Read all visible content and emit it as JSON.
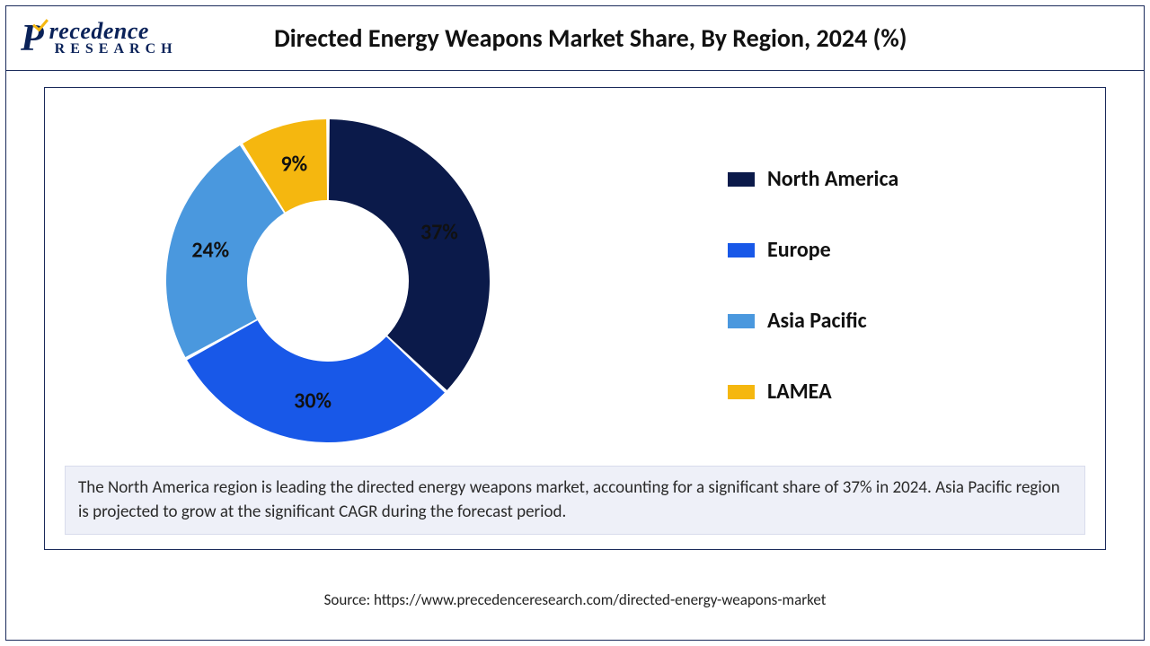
{
  "logo": {
    "brand_top": "recedence",
    "brand_sub": "RESEARCH"
  },
  "chart": {
    "type": "donut",
    "title": "Directed Energy Weapons Market Share, By Region, 2024 (%)",
    "title_fontsize": 28,
    "title_color": "#111111",
    "background_color": "#ffffff",
    "frame_border_color": "#1a2a5a",
    "donut_outer_radius": 180,
    "donut_inner_radius": 90,
    "gap_degrees": 1.2,
    "label_fontsize": 24,
    "label_fontweight": 700,
    "series": [
      {
        "name": "North America",
        "value": 37,
        "label": "37%",
        "color": "#0b1a4a"
      },
      {
        "name": "Europe",
        "value": 30,
        "label": "30%",
        "color": "#1858e8"
      },
      {
        "name": "Asia Pacific",
        "value": 24,
        "label": "24%",
        "color": "#4a98de"
      },
      {
        "name": "LAMEA",
        "value": 9,
        "label": "9%",
        "color": "#f5b70f"
      }
    ],
    "legend": {
      "position": "right",
      "swatch_width": 30,
      "swatch_height": 16,
      "label_fontsize": 24,
      "label_fontweight": 700,
      "label_color": "#111111",
      "row_gap": 50
    },
    "caption": {
      "text": "The North America region is leading the directed energy weapons market, accounting for a significant share of 37% in 2024. Asia Pacific region is projected to grow at the significant CAGR during the forecast period.",
      "background_color": "#eef0f8",
      "border_color": "#d8dcec",
      "fontsize": 19,
      "font_color": "#2a2a2a"
    }
  },
  "source": {
    "text": "Source: https://www.precedenceresearch.com/directed-energy-weapons-market",
    "fontsize": 17,
    "color": "#222222"
  }
}
